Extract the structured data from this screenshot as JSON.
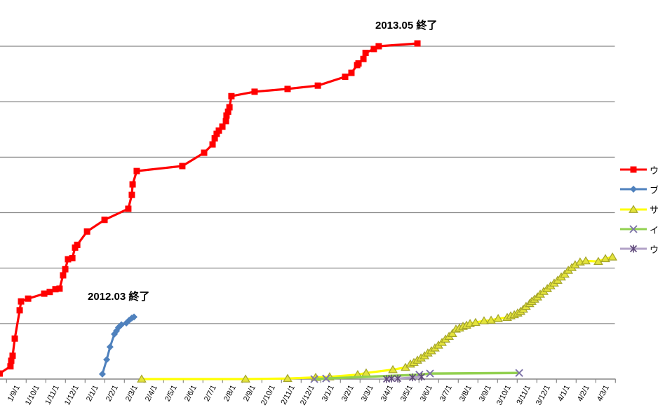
{
  "chart_data": {
    "type": "line",
    "title": "",
    "xlabel": "",
    "ylabel": "",
    "x_labels": [
      "1/9/1",
      "1/10/1",
      "1/11/1",
      "1/12/1",
      "2/1/1",
      "2/2/1",
      "2/3/1",
      "2/4/1",
      "2/5/1",
      "2/6/1",
      "2/7/1",
      "2/8/1",
      "2/9/1",
      "2/10/1",
      "2/11/1",
      "2/12/1",
      "3/1/1",
      "3/2/1",
      "3/3/1",
      "3/4/1",
      "3/5/1",
      "3/6/1",
      "3/7/1",
      "3/8/1",
      "3/9/1",
      "3/10/1",
      "3/11/1",
      "3/12/1",
      "4/1/1",
      "4/2/1",
      "4/3/1"
    ],
    "x_axis_note": "monthly categories, labels clipped at left image edge",
    "y_axis": {
      "labels_visible": false,
      "min": 0,
      "max": 6.5,
      "gridline_step": 1,
      "units": "gridline intervals (no numeric labels visible)"
    },
    "legend_position": "right (clipped by image edge)",
    "grid": "horizontal gridlines on",
    "series": [
      {
        "name": "ウシ",
        "color": "#FF0000",
        "marker": "square",
        "marker_color": "#FF0000",
        "line_width": 3.2,
        "points": [
          [
            -0.85,
            0.1
          ],
          [
            -0.3,
            0.23
          ],
          [
            -0.26,
            0.33
          ],
          [
            -0.19,
            0.42
          ],
          [
            -0.08,
            0.73
          ],
          [
            0.17,
            1.24
          ],
          [
            0.24,
            1.4
          ],
          [
            0.6,
            1.45
          ],
          [
            1.42,
            1.54
          ],
          [
            1.7,
            1.57
          ],
          [
            1.99,
            1.62
          ],
          [
            2.2,
            1.63
          ],
          [
            2.38,
            1.87
          ],
          [
            2.49,
            1.98
          ],
          [
            2.63,
            2.16
          ],
          [
            2.85,
            2.18
          ],
          [
            2.99,
            2.37
          ],
          [
            3.1,
            2.42
          ],
          [
            3.6,
            2.66
          ],
          [
            4.49,
            2.87
          ],
          [
            5.7,
            3.07
          ],
          [
            5.88,
            3.32
          ],
          [
            5.92,
            3.51
          ],
          [
            6.13,
            3.75
          ],
          [
            8.45,
            3.84
          ],
          [
            9.56,
            4.08
          ],
          [
            9.99,
            4.23
          ],
          [
            10.1,
            4.34
          ],
          [
            10.2,
            4.42
          ],
          [
            10.31,
            4.48
          ],
          [
            10.49,
            4.55
          ],
          [
            10.67,
            4.65
          ],
          [
            10.7,
            4.75
          ],
          [
            10.78,
            4.82
          ],
          [
            10.85,
            4.9
          ],
          [
            10.95,
            5.1
          ],
          [
            12.13,
            5.18
          ],
          [
            13.81,
            5.23
          ],
          [
            15.35,
            5.29
          ],
          [
            16.74,
            5.45
          ],
          [
            17.06,
            5.52
          ],
          [
            17.35,
            5.66
          ],
          [
            17.42,
            5.69
          ],
          [
            17.67,
            5.77
          ],
          [
            17.78,
            5.88
          ],
          [
            18.2,
            5.95
          ],
          [
            18.45,
            6.0
          ],
          [
            20.42,
            6.05
          ]
        ]
      },
      {
        "name": "ブタ",
        "color": "#4F81BD",
        "marker": "diamond",
        "marker_color": "#4F81BD",
        "line_width": 3,
        "points": [
          [
            4.38,
            0.09
          ],
          [
            4.6,
            0.35
          ],
          [
            4.77,
            0.58
          ],
          [
            4.99,
            0.81
          ],
          [
            5.1,
            0.87
          ],
          [
            5.2,
            0.93
          ],
          [
            5.35,
            0.98
          ],
          [
            5.6,
            1.01
          ],
          [
            5.74,
            1.06
          ],
          [
            5.88,
            1.1
          ],
          [
            5.99,
            1.12
          ]
        ]
      },
      {
        "name": "サル",
        "color": "#FFFF00",
        "marker": "triangle",
        "marker_fill": "#E3E33C",
        "marker_stroke": "#A3A329",
        "line_width": 3.2,
        "points": [
          [
            6.38,
            0.0
          ],
          [
            11.67,
            0.0
          ],
          [
            13.81,
            0.01
          ],
          [
            15.24,
            0.03
          ],
          [
            15.95,
            0.04
          ],
          [
            17.38,
            0.08
          ],
          [
            17.81,
            0.11
          ],
          [
            19.17,
            0.17
          ],
          [
            19.81,
            0.21
          ],
          [
            20.06,
            0.27
          ],
          [
            20.24,
            0.3
          ],
          [
            20.42,
            0.34
          ],
          [
            20.6,
            0.38
          ],
          [
            20.78,
            0.42
          ],
          [
            20.95,
            0.47
          ],
          [
            21.13,
            0.51
          ],
          [
            21.31,
            0.56
          ],
          [
            21.49,
            0.61
          ],
          [
            21.67,
            0.66
          ],
          [
            21.85,
            0.72
          ],
          [
            22.03,
            0.77
          ],
          [
            22.2,
            0.82
          ],
          [
            22.38,
            0.9
          ],
          [
            22.56,
            0.92
          ],
          [
            22.74,
            0.95
          ],
          [
            22.92,
            0.97
          ],
          [
            23.1,
            1.0
          ],
          [
            23.38,
            1.02
          ],
          [
            23.81,
            1.05
          ],
          [
            24.17,
            1.06
          ],
          [
            24.53,
            1.09
          ],
          [
            24.99,
            1.11
          ],
          [
            25.17,
            1.14
          ],
          [
            25.35,
            1.16
          ],
          [
            25.52,
            1.19
          ],
          [
            25.67,
            1.22
          ],
          [
            25.81,
            1.26
          ],
          [
            25.95,
            1.31
          ],
          [
            26.13,
            1.36
          ],
          [
            26.24,
            1.4
          ],
          [
            26.38,
            1.44
          ],
          [
            26.53,
            1.48
          ],
          [
            26.67,
            1.53
          ],
          [
            26.85,
            1.58
          ],
          [
            27.03,
            1.63
          ],
          [
            27.2,
            1.68
          ],
          [
            27.38,
            1.73
          ],
          [
            27.56,
            1.78
          ],
          [
            27.74,
            1.84
          ],
          [
            27.92,
            1.89
          ],
          [
            28.1,
            1.96
          ],
          [
            28.28,
            2.01
          ],
          [
            28.45,
            2.06
          ],
          [
            28.7,
            2.11
          ],
          [
            28.99,
            2.13
          ],
          [
            29.63,
            2.12
          ],
          [
            29.99,
            2.17
          ],
          [
            30.35,
            2.2
          ]
        ]
      },
      {
        "name": "イノ",
        "color": "#92D050",
        "marker": "x",
        "marker_color": "#7D73A8",
        "line_width": 3.5,
        "points": [
          [
            15.17,
            0.0
          ],
          [
            15.77,
            0.01
          ],
          [
            20.52,
            0.08
          ],
          [
            21.06,
            0.1
          ],
          [
            25.6,
            0.11
          ]
        ]
      },
      {
        "name": "ウサ",
        "color": "#B2A2C7",
        "marker": "asterisk",
        "marker_color": "#5F497A",
        "line_width": 3,
        "points": [
          [
            18.85,
            0.0
          ],
          [
            19.1,
            0.01
          ],
          [
            19.42,
            0.01
          ],
          [
            20.17,
            0.03
          ],
          [
            20.63,
            0.04
          ]
        ]
      }
    ],
    "annotations": [
      {
        "text": "2013.05 終了",
        "attached_to": "ウシ series end"
      },
      {
        "text": "2012.03 終了",
        "attached_to": "ブタ series end"
      }
    ]
  },
  "legend": {
    "items": [
      {
        "label": "ウシ"
      },
      {
        "label": "ブタ"
      },
      {
        "label": "サル"
      },
      {
        "label": "イノ"
      },
      {
        "label": "ウサ"
      }
    ]
  }
}
